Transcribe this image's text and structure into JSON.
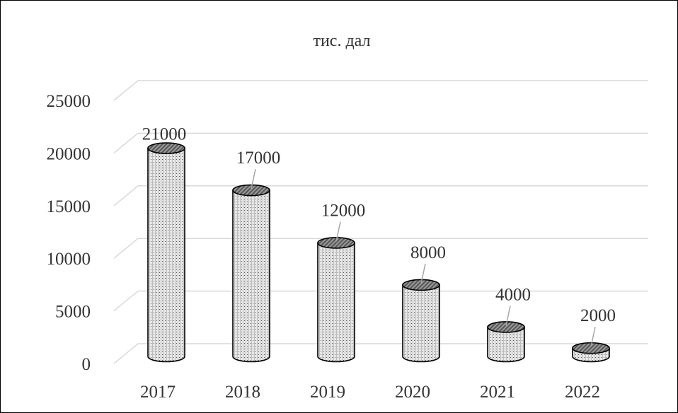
{
  "chart_data": {
    "type": "bar",
    "title": "тис. дал",
    "categories": [
      "2017",
      "2018",
      "2019",
      "2020",
      "2021",
      "2022"
    ],
    "values": [
      21000,
      17000,
      12000,
      8000,
      4000,
      2000
    ],
    "ylim": [
      0,
      25000
    ],
    "yticks": [
      "0",
      "5000",
      "10000",
      "15000",
      "20000",
      "25000"
    ],
    "data_labels": [
      "21000",
      "17000",
      "12000",
      "8000",
      "4000",
      "2000"
    ],
    "grid": true,
    "legend": "none",
    "bar_style": "3d-cylinder",
    "colors": {
      "grid": "#d9d9d9",
      "bar_outline": "#000000",
      "text": "#333333",
      "bar_top": "#7f7f7f"
    }
  }
}
